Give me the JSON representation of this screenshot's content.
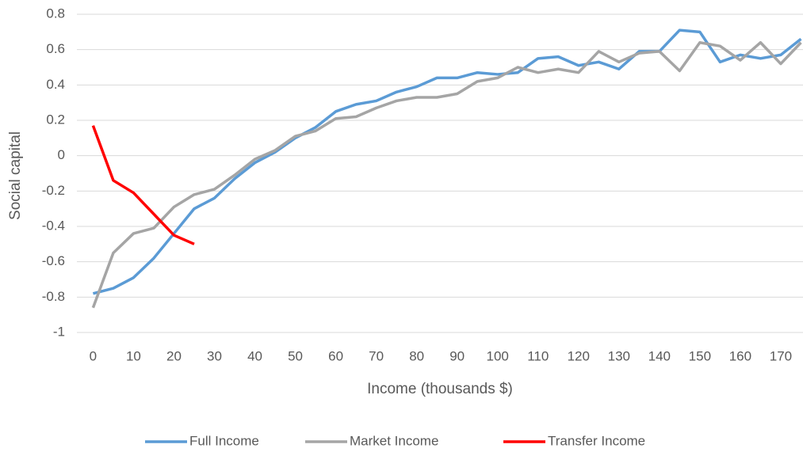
{
  "chart_data": {
    "type": "line",
    "x_label": "Income (thousands $)",
    "y_label": "Social capital",
    "x": [
      0,
      5,
      10,
      15,
      20,
      25,
      30,
      35,
      40,
      45,
      50,
      55,
      60,
      65,
      70,
      75,
      80,
      85,
      90,
      95,
      100,
      105,
      110,
      115,
      120,
      125,
      130,
      135,
      140,
      145,
      150,
      155,
      160,
      165,
      170,
      175
    ],
    "series": [
      {
        "name": "Full Income",
        "color": "#5b9bd5",
        "values": [
          -0.78,
          -0.75,
          -0.69,
          -0.58,
          -0.44,
          -0.3,
          -0.24,
          -0.13,
          -0.04,
          0.02,
          0.1,
          0.16,
          0.25,
          0.29,
          0.31,
          0.36,
          0.39,
          0.44,
          0.44,
          0.47,
          0.46,
          0.47,
          0.55,
          0.56,
          0.51,
          0.53,
          0.49,
          0.59,
          0.59,
          0.71,
          0.7,
          0.53,
          0.57,
          0.55,
          0.57,
          0.66
        ]
      },
      {
        "name": "Market Income",
        "color": "#a5a5a5",
        "values": [
          -0.86,
          -0.55,
          -0.44,
          -0.41,
          -0.29,
          -0.22,
          -0.19,
          -0.11,
          -0.02,
          0.03,
          0.11,
          0.14,
          0.21,
          0.22,
          0.27,
          0.31,
          0.33,
          0.33,
          0.35,
          0.42,
          0.44,
          0.5,
          0.47,
          0.49,
          0.47,
          0.59,
          0.53,
          0.58,
          0.59,
          0.48,
          0.64,
          0.62,
          0.54,
          0.64,
          0.52,
          0.64
        ]
      },
      {
        "name": "Transfer Income",
        "color": "#ff0000",
        "values": [
          0.17,
          -0.14,
          -0.21,
          -0.33,
          -0.45,
          -0.5,
          null,
          null,
          null,
          null,
          null,
          null,
          null,
          null,
          null,
          null,
          null,
          null,
          null,
          null,
          null,
          null,
          null,
          null,
          null,
          null,
          null,
          null,
          null,
          null,
          null,
          null,
          null,
          null,
          null,
          null
        ]
      }
    ],
    "xlim": [
      -4,
      175.5
    ],
    "xticks": [
      0,
      10,
      20,
      30,
      40,
      50,
      60,
      70,
      80,
      90,
      100,
      110,
      120,
      130,
      140,
      150,
      160,
      170
    ],
    "ylim": [
      -1,
      0.8
    ],
    "yticks": [
      -1,
      -0.8,
      -0.6,
      -0.4,
      -0.2,
      0,
      0.2,
      0.4,
      0.6,
      0.8
    ],
    "grid": true,
    "legend": "bottom"
  }
}
